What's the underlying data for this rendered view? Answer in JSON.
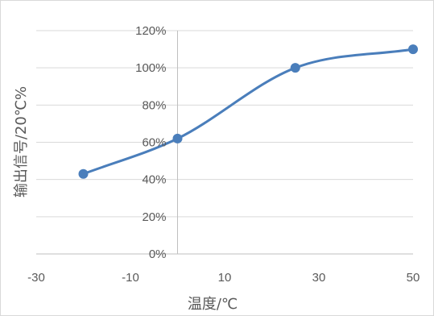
{
  "chart_data": {
    "type": "line",
    "title": "",
    "xlabel": "温度/℃",
    "ylabel": "输出信号/20℃%",
    "x_ticks": [
      -30,
      -10,
      10,
      30,
      50
    ],
    "x_tick_labels": [
      "-30",
      "-10",
      "10",
      "30",
      "50"
    ],
    "y_ticks": [
      0,
      20,
      40,
      60,
      80,
      100,
      120
    ],
    "y_tick_labels": [
      "0%",
      "20%",
      "40%",
      "60%",
      "80%",
      "100%",
      "120%"
    ],
    "xlim": [
      -30,
      50
    ],
    "ylim": [
      0,
      120
    ],
    "grid": true,
    "smooth": true,
    "series": [
      {
        "name": "",
        "color": "#4a7ebb",
        "points": [
          {
            "x": -20,
            "y": 43
          },
          {
            "x": 0,
            "y": 62
          },
          {
            "x": 25,
            "y": 100
          },
          {
            "x": 50,
            "y": 110
          }
        ]
      }
    ]
  }
}
